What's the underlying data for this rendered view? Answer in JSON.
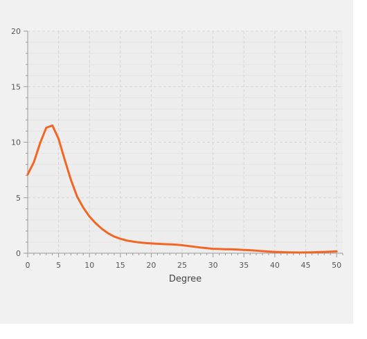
{
  "chart_data": {
    "type": "line",
    "title": "",
    "xlabel": "Degree",
    "ylabel": "",
    "xlim": [
      0,
      51
    ],
    "ylim": [
      0,
      20
    ],
    "x_ticks": [
      0,
      5,
      10,
      15,
      20,
      25,
      30,
      35,
      40,
      45,
      50
    ],
    "y_ticks": [
      0,
      5,
      10,
      15,
      20
    ],
    "x_tick_labels": [
      "0",
      "5",
      "10",
      "15",
      "20",
      "25",
      "30",
      "35",
      "40",
      "45",
      "50"
    ],
    "y_tick_labels": [
      "0",
      "5",
      "10",
      "15",
      "20"
    ],
    "grid": true,
    "legend": "none",
    "series": [
      {
        "color": "#f26522",
        "x": [
          0,
          1,
          2,
          3,
          4,
          5,
          6,
          7,
          8,
          9,
          10,
          11,
          12,
          13,
          14,
          15,
          16,
          17,
          18,
          19,
          20,
          21,
          22,
          23,
          24,
          25,
          26,
          27,
          28,
          29,
          30,
          31,
          32,
          33,
          34,
          35,
          36,
          37,
          38,
          39,
          40,
          41,
          42,
          43,
          44,
          45,
          46,
          47,
          48,
          49,
          50
        ],
        "y": [
          7.1,
          8.2,
          9.9,
          11.3,
          11.5,
          10.3,
          8.4,
          6.6,
          5.1,
          4.1,
          3.3,
          2.7,
          2.2,
          1.8,
          1.5,
          1.3,
          1.15,
          1.05,
          0.97,
          0.92,
          0.88,
          0.85,
          0.82,
          0.8,
          0.77,
          0.72,
          0.65,
          0.58,
          0.51,
          0.45,
          0.4,
          0.38,
          0.36,
          0.35,
          0.33,
          0.3,
          0.27,
          0.23,
          0.19,
          0.15,
          0.12,
          0.1,
          0.08,
          0.07,
          0.06,
          0.07,
          0.08,
          0.1,
          0.12,
          0.14,
          0.16
        ]
      }
    ]
  }
}
